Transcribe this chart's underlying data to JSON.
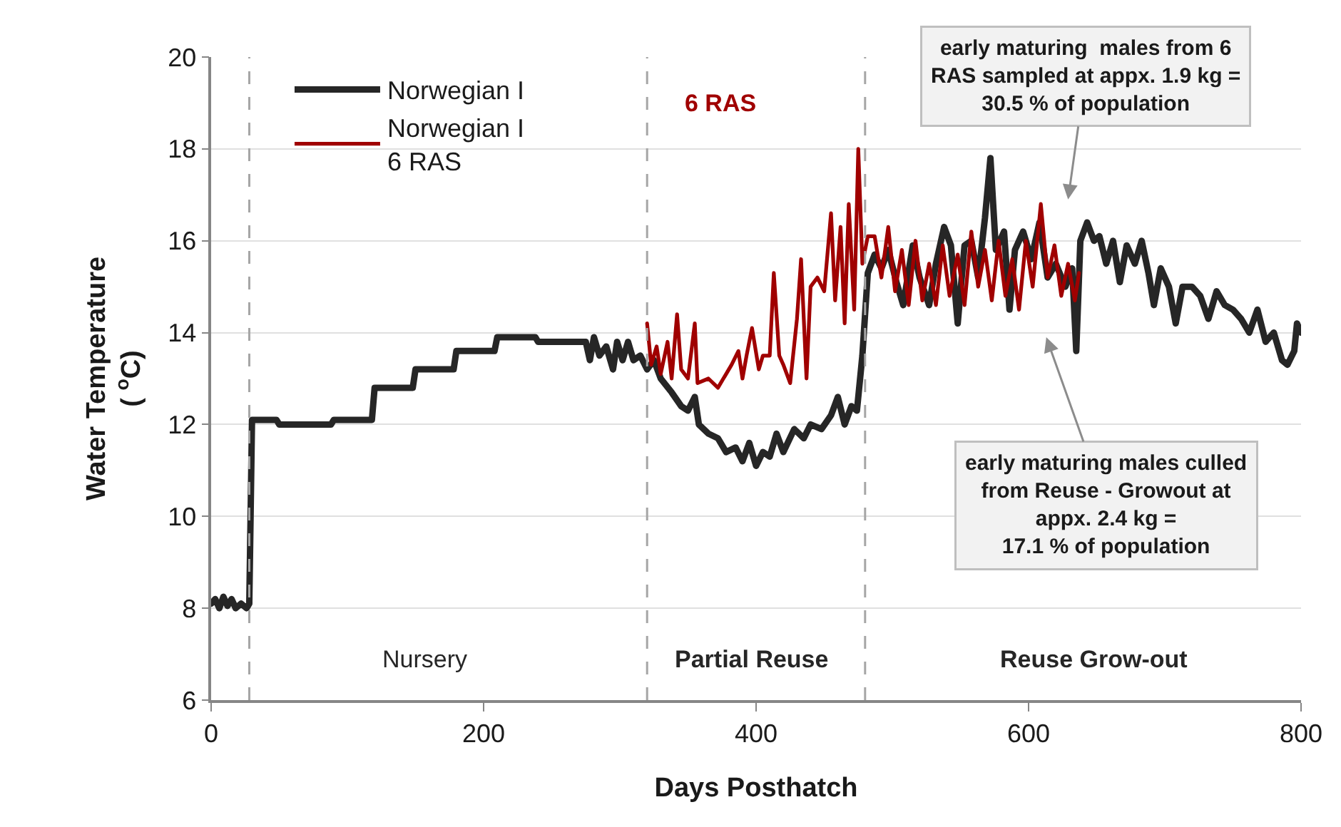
{
  "chart_data": {
    "type": "line",
    "xlabel": "Days Posthatch",
    "ylabel": "Water Temperature\n( $^{o}$C)",
    "xlim": [
      0,
      800
    ],
    "xticks": [
      0,
      200,
      400,
      600,
      800
    ],
    "ylim": [
      6,
      20
    ],
    "yticks": [
      6,
      8,
      10,
      12,
      14,
      16,
      18,
      20
    ],
    "grid": "y",
    "legend": "top left",
    "line_style": "solid",
    "marker": "none",
    "series": [
      {
        "name": "Norwegian I",
        "color": "#262626",
        "x": [
          0,
          3,
          6,
          9,
          12,
          15,
          18,
          22,
          26,
          28,
          30,
          48,
          50,
          88,
          90,
          118,
          120,
          148,
          150,
          178,
          180,
          208,
          210,
          238,
          240,
          275,
          278,
          281,
          285,
          290,
          295,
          298,
          302,
          306,
          310,
          315,
          320,
          325,
          330,
          338,
          345,
          350,
          355,
          358,
          365,
          372,
          378,
          385,
          390,
          395,
          400,
          405,
          410,
          415,
          420,
          428,
          435,
          440,
          448,
          455,
          460,
          465,
          470,
          474,
          478,
          482,
          487,
          492,
          497,
          503,
          508,
          515,
          520,
          527,
          532,
          538,
          543,
          548,
          553,
          558,
          563,
          568,
          572,
          576,
          582,
          586,
          590,
          596,
          602,
          608,
          614,
          620,
          627,
          632,
          635,
          638,
          643,
          648,
          652,
          657,
          662,
          667,
          672,
          678,
          683,
          688,
          692,
          697,
          703,
          708,
          713,
          720,
          726,
          732,
          738,
          744,
          750,
          756,
          762,
          768,
          774,
          780,
          786,
          790,
          795,
          797,
          800
        ],
        "values": [
          8.1,
          8.2,
          8.0,
          8.25,
          8.05,
          8.2,
          8.0,
          8.1,
          8.0,
          8.1,
          12.1,
          12.1,
          12.0,
          12.0,
          12.1,
          12.1,
          12.8,
          12.8,
          13.2,
          13.2,
          13.6,
          13.6,
          13.9,
          13.9,
          13.8,
          13.8,
          13.4,
          13.9,
          13.5,
          13.7,
          13.2,
          13.8,
          13.4,
          13.8,
          13.4,
          13.5,
          13.2,
          13.4,
          13.0,
          12.7,
          12.4,
          12.3,
          12.6,
          12.0,
          11.8,
          11.7,
          11.4,
          11.5,
          11.2,
          11.6,
          11.1,
          11.4,
          11.3,
          11.8,
          11.4,
          11.9,
          11.7,
          12.0,
          11.9,
          12.2,
          12.6,
          12.0,
          12.4,
          12.3,
          13.5,
          15.3,
          15.7,
          15.4,
          15.8,
          15.1,
          14.6,
          15.9,
          15.2,
          14.6,
          15.5,
          16.3,
          15.9,
          14.2,
          15.9,
          16.0,
          15.2,
          16.5,
          17.8,
          15.8,
          16.2,
          14.5,
          15.8,
          16.2,
          15.6,
          16.4,
          15.2,
          15.5,
          15.0,
          15.4,
          13.6,
          16.0,
          16.4,
          16.0,
          16.1,
          15.5,
          16.0,
          15.1,
          15.9,
          15.5,
          16.0,
          15.3,
          14.6,
          15.4,
          15.0,
          14.2,
          15.0,
          15.0,
          14.8,
          14.3,
          14.9,
          14.6,
          14.5,
          14.3,
          14.0,
          14.5,
          13.8,
          14.0,
          13.4,
          13.3,
          13.6,
          14.2,
          14.0
        ]
      },
      {
        "name": "Norwegian I\n6 RAS",
        "color": "#a00000",
        "x": [
          320,
          323,
          327,
          330,
          335,
          338,
          342,
          345,
          350,
          355,
          357,
          365,
          372,
          378,
          382,
          387,
          390,
          393,
          397,
          402,
          405,
          410,
          413,
          417,
          420,
          425,
          430,
          433,
          437,
          440,
          445,
          450,
          455,
          458,
          462,
          465,
          468,
          472,
          475,
          478,
          482,
          487,
          492,
          497,
          502,
          507,
          512,
          517,
          522,
          527,
          532,
          537,
          542,
          548,
          553,
          558,
          563,
          568,
          573,
          578,
          583,
          588,
          593,
          598,
          603,
          609,
          614,
          619,
          624,
          629,
          634,
          637
        ],
        "values": [
          14.2,
          13.3,
          13.7,
          13.1,
          13.8,
          13.0,
          14.4,
          13.2,
          13.0,
          14.2,
          12.9,
          13.0,
          12.8,
          13.1,
          13.3,
          13.6,
          13.0,
          13.5,
          14.1,
          13.2,
          13.5,
          13.5,
          15.3,
          13.5,
          13.3,
          12.9,
          14.3,
          15.6,
          13.0,
          15.0,
          15.2,
          14.9,
          16.6,
          14.7,
          16.3,
          14.2,
          16.8,
          14.5,
          18.0,
          15.5,
          16.1,
          16.1,
          15.2,
          16.3,
          14.9,
          15.8,
          14.6,
          16.0,
          14.7,
          15.5,
          14.6,
          15.9,
          14.8,
          15.7,
          14.6,
          16.2,
          15.0,
          15.8,
          14.7,
          16.0,
          14.8,
          15.6,
          14.5,
          16.0,
          15.0,
          16.8,
          15.2,
          15.9,
          14.8,
          15.5,
          14.7,
          15.3
        ]
      }
    ],
    "ref_lines": [
      {
        "axis": "x",
        "value": 28,
        "color": "#a6a6a6",
        "line_style": "dashed"
      },
      {
        "axis": "x",
        "value": 320,
        "color": "#a6a6a6",
        "line_style": "dashed"
      },
      {
        "axis": "x",
        "value": 480,
        "color": "#a6a6a6",
        "line_style": "dashed"
      }
    ],
    "annotations": [
      "Nursery",
      "Partial Reuse",
      "Reuse Grow-out",
      "6 RAS",
      "early maturing  males from 6\nRAS sampled at appx. 1.9 kg =\n30.5 % of population",
      "early maturing males culled\nfrom Reuse - Growout at\nappx. 2.4 kg =\n17.1 % of population"
    ]
  }
}
